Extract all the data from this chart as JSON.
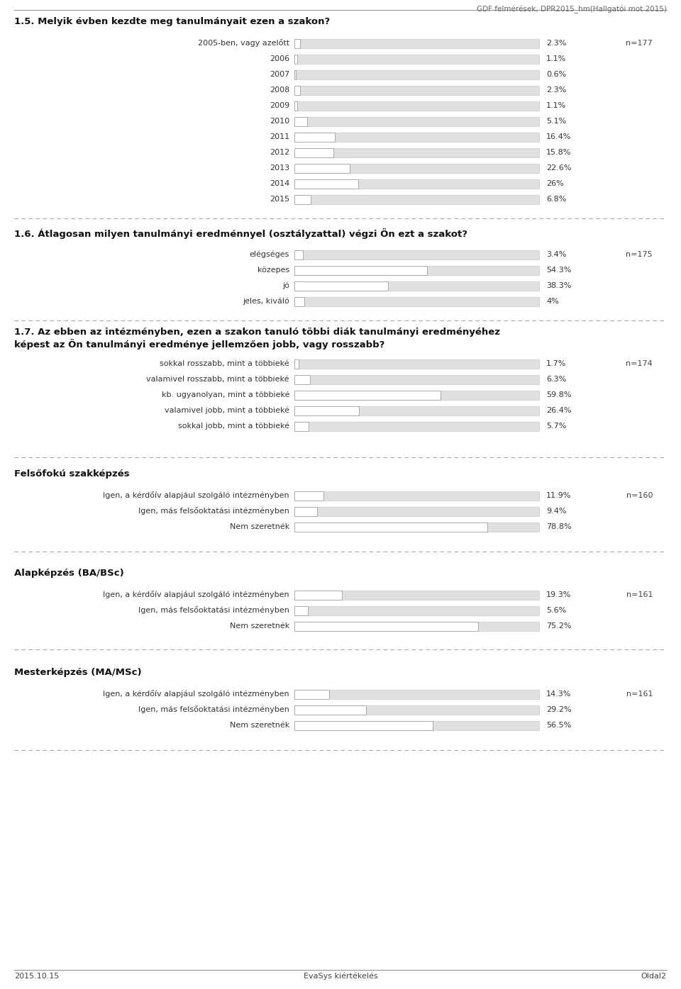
{
  "header_text": "GDF felmérések, DPR2015_hm(Hallgatói mot.2015)",
  "footer_left": "2015.10.15",
  "footer_center": "EvaSys kiértékelés",
  "footer_right": "Oldal2",
  "sections": [
    {
      "title": "1.5. Melyik évben kezdte meg tanulmányait ezen a szakon?",
      "n_label": "n=177",
      "title_style": "question",
      "items": [
        {
          "label": "2005-ben, vagy azelőtt",
          "value": 2.3,
          "value_str": "2.3%"
        },
        {
          "label": "2006",
          "value": 1.1,
          "value_str": "1.1%"
        },
        {
          "label": "2007",
          "value": 0.6,
          "value_str": "0.6%"
        },
        {
          "label": "2008",
          "value": 2.3,
          "value_str": "2.3%"
        },
        {
          "label": "2009",
          "value": 1.1,
          "value_str": "1.1%"
        },
        {
          "label": "2010",
          "value": 5.1,
          "value_str": "5.1%"
        },
        {
          "label": "2011",
          "value": 16.4,
          "value_str": "16.4%"
        },
        {
          "label": "2012",
          "value": 15.8,
          "value_str": "15.8%"
        },
        {
          "label": "2013",
          "value": 22.6,
          "value_str": "22.6%"
        },
        {
          "label": "2014",
          "value": 26.0,
          "value_str": "26%"
        },
        {
          "label": "2015",
          "value": 6.8,
          "value_str": "6.8%"
        }
      ]
    },
    {
      "title": "1.6. Átlagosan milyen tanulmányi eredménnyel (osztályzattal) végzi Ön ezt a szakot?",
      "n_label": "n=175",
      "title_style": "question",
      "items": [
        {
          "label": "elégséges",
          "value": 3.4,
          "value_str": "3.4%"
        },
        {
          "label": "közepes",
          "value": 54.3,
          "value_str": "54.3%"
        },
        {
          "label": "jó",
          "value": 38.3,
          "value_str": "38.3%"
        },
        {
          "label": "jeles, kiváló",
          "value": 4.0,
          "value_str": "4%"
        }
      ]
    },
    {
      "title": "1.7. Az ebben az intézményben, ezen a szakon tanuló többi diák tanulmányi eredményéhez képest az Ön tanulmányi eredménye jellemzően jobb, vagy rosszabb?",
      "n_label": "n=174",
      "title_style": "question",
      "items": [
        {
          "label": "sokkal rosszabb, mint a többieké",
          "value": 1.7,
          "value_str": "1.7%"
        },
        {
          "label": "valamivel rosszabb, mint a többieké",
          "value": 6.3,
          "value_str": "6.3%"
        },
        {
          "label": "kb. ugyanolyan, mint a többieké",
          "value": 59.8,
          "value_str": "59.8%"
        },
        {
          "label": "valamivel jobb, mint a többieké",
          "value": 26.4,
          "value_str": "26.4%"
        },
        {
          "label": "sokkal jobb, mint a többieké",
          "value": 5.7,
          "value_str": "5.7%"
        }
      ]
    },
    {
      "title": "Felsőfokú szakképzés",
      "n_label": "n=160",
      "title_style": "category",
      "items": [
        {
          "label": "Igen, a kérdőív alapjául szolgáló intézményben",
          "value": 11.9,
          "value_str": "11.9%"
        },
        {
          "label": "Igen, más felsőoktatási intézményben",
          "value": 9.4,
          "value_str": "9.4%"
        },
        {
          "label": "Nem szeretnék",
          "value": 78.8,
          "value_str": "78.8%"
        }
      ]
    },
    {
      "title": "Alapképzés (BA/BSc)",
      "n_label": "n=161",
      "title_style": "category",
      "items": [
        {
          "label": "Igen, a kérdőív alapjául szolgáló intézményben",
          "value": 19.3,
          "value_str": "19.3%"
        },
        {
          "label": "Igen, más felsőoktatási intézményben",
          "value": 5.6,
          "value_str": "5.6%"
        },
        {
          "label": "Nem szeretnék",
          "value": 75.2,
          "value_str": "75.2%"
        }
      ]
    },
    {
      "title": "Mesterképzés (MA/MSc)",
      "n_label": "n=161",
      "title_style": "category",
      "items": [
        {
          "label": "Igen, a kérdőív alapjául szolgáló intézményben",
          "value": 14.3,
          "value_str": "14.3%"
        },
        {
          "label": "Igen, más felsőoktatási intézményben",
          "value": 29.2,
          "value_str": "29.2%"
        },
        {
          "label": "Nem szeretnék",
          "value": 56.5,
          "value_str": "56.5%"
        }
      ]
    }
  ],
  "bg_color": "#ffffff",
  "bar_bg_color": "#e0e0e0",
  "bar_fg_color": "#ffffff",
  "bar_border_color": "#aaaaaa",
  "bar_bg_border_color": "#cccccc",
  "header_fontsize": 7.5,
  "title_fontsize": 9.5,
  "label_fontsize": 8,
  "value_fontsize": 8,
  "n_fontsize": 8,
  "footer_fontsize": 8
}
